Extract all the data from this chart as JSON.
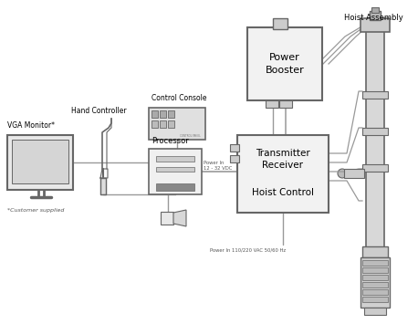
{
  "bg": "white",
  "lc": "#999999",
  "dc": "#666666",
  "fc_box": "#f2f2f2",
  "fc_dark": "#cccccc",
  "labels": {
    "vga_monitor": "VGA Monitor*",
    "customer_supplied": "*Customer supplied",
    "hand_controller": "Hand Controller",
    "control_console": "Control Console",
    "processor": "Processor",
    "power_booster": "Power\nBooster",
    "transmitter_line1": "Transmitter",
    "transmitter_line2": "Receiver",
    "hoist_control": "Hoist Control",
    "hoist_assembly": "Hoist Assembly",
    "power_in_dc": "Power In\n12 - 32 VDC",
    "power_in_ac": "Power In 110/220 VAC 50/60 Hz"
  },
  "figsize": [
    4.58,
    3.55
  ],
  "dpi": 100
}
